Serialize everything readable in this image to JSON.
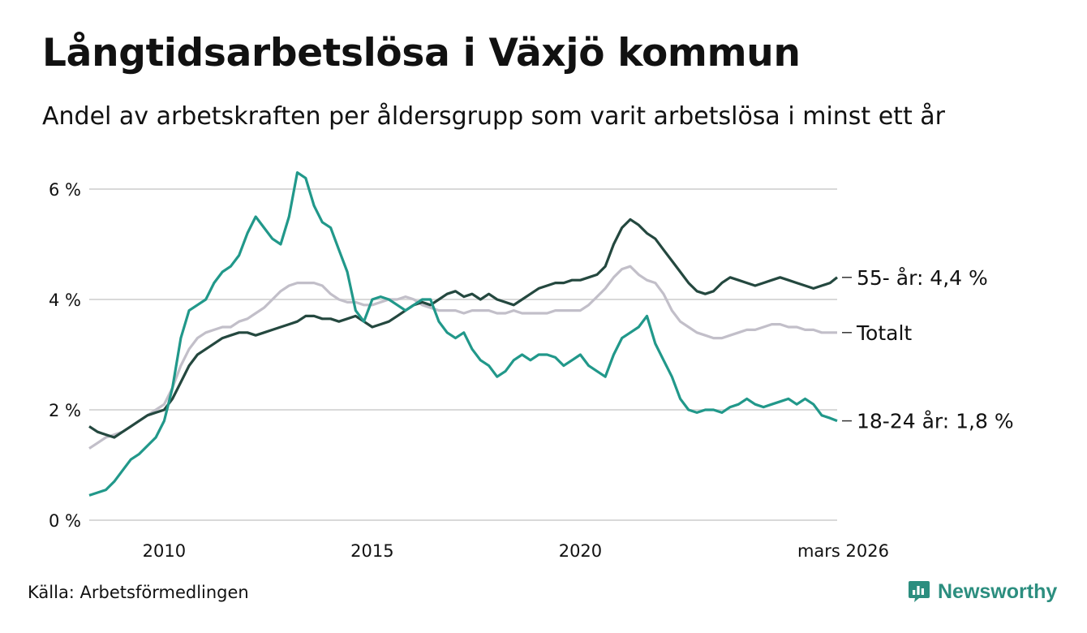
{
  "title": "Långtidsarbetslösa i Växjö kommun",
  "subtitle": "Andel av arbetskraften per åldersgrupp som varit arbetslösa i minst ett år",
  "source": "Källa: Arbetsförmedlingen",
  "brand": {
    "name": "Newsworthy",
    "icon": "newsworthy-logo-icon"
  },
  "colors": {
    "youth": "#21988a",
    "senior": "#24483f",
    "total": "#c2bfc9",
    "grid": "#d9d9d9",
    "brand": "#2c8e7f"
  },
  "chart_data": {
    "type": "line",
    "title": "Långtidsarbetslösa i Växjö kommun",
    "xlabel": "",
    "ylabel": "",
    "xlim": [
      2008.2,
      2026.17
    ],
    "ylim": [
      0,
      6
    ],
    "y_ticks": [
      0,
      2,
      4,
      6
    ],
    "y_tick_labels": [
      "0 %",
      "2 %",
      "4 %",
      "6 %"
    ],
    "x_ticks": [
      2010,
      2015,
      2020,
      2026.17
    ],
    "x_tick_labels": [
      "2010",
      "2015",
      "2020",
      "mars 2026"
    ],
    "grid": true,
    "series": [
      {
        "name": "55- år",
        "label": "55- år: 4,4 %",
        "color": "#24483f",
        "x": [
          2008.2,
          2008.4,
          2008.6,
          2008.8,
          2009.0,
          2009.2,
          2009.4,
          2009.6,
          2009.8,
          2010.0,
          2010.2,
          2010.4,
          2010.6,
          2010.8,
          2011.0,
          2011.2,
          2011.4,
          2011.6,
          2011.8,
          2012.0,
          2012.2,
          2012.4,
          2012.6,
          2012.8,
          2013.0,
          2013.2,
          2013.4,
          2013.6,
          2013.8,
          2014.0,
          2014.2,
          2014.4,
          2014.6,
          2014.8,
          2015.0,
          2015.2,
          2015.4,
          2015.6,
          2015.8,
          2016.0,
          2016.2,
          2016.4,
          2016.6,
          2016.8,
          2017.0,
          2017.2,
          2017.4,
          2017.6,
          2017.8,
          2018.0,
          2018.2,
          2018.4,
          2018.6,
          2018.8,
          2019.0,
          2019.2,
          2019.4,
          2019.6,
          2019.8,
          2020.0,
          2020.2,
          2020.4,
          2020.6,
          2020.8,
          2021.0,
          2021.2,
          2021.4,
          2021.6,
          2021.8,
          2022.0,
          2022.2,
          2022.4,
          2022.6,
          2022.8,
          2023.0,
          2023.2,
          2023.4,
          2023.6,
          2023.8,
          2024.0,
          2024.2,
          2024.4,
          2024.6,
          2024.8,
          2025.0,
          2025.2,
          2025.4,
          2025.6,
          2025.8,
          2026.0,
          2026.17
        ],
        "values": [
          1.7,
          1.6,
          1.55,
          1.5,
          1.6,
          1.7,
          1.8,
          1.9,
          1.95,
          2.0,
          2.2,
          2.5,
          2.8,
          3.0,
          3.1,
          3.2,
          3.3,
          3.35,
          3.4,
          3.4,
          3.35,
          3.4,
          3.45,
          3.5,
          3.55,
          3.6,
          3.7,
          3.7,
          3.65,
          3.65,
          3.6,
          3.65,
          3.7,
          3.6,
          3.5,
          3.55,
          3.6,
          3.7,
          3.8,
          3.9,
          3.95,
          3.9,
          4.0,
          4.1,
          4.15,
          4.05,
          4.1,
          4.0,
          4.1,
          4.0,
          3.95,
          3.9,
          4.0,
          4.1,
          4.2,
          4.25,
          4.3,
          4.3,
          4.35,
          4.35,
          4.4,
          4.45,
          4.6,
          5.0,
          5.3,
          5.45,
          5.35,
          5.2,
          5.1,
          4.9,
          4.7,
          4.5,
          4.3,
          4.15,
          4.1,
          4.15,
          4.3,
          4.4,
          4.35,
          4.3,
          4.25,
          4.3,
          4.35,
          4.4,
          4.35,
          4.3,
          4.25,
          4.2,
          4.25,
          4.3,
          4.4
        ]
      },
      {
        "name": "Totalt",
        "label": "Totalt",
        "color": "#c2bfc9",
        "x": [
          2008.2,
          2008.4,
          2008.6,
          2008.8,
          2009.0,
          2009.2,
          2009.4,
          2009.6,
          2009.8,
          2010.0,
          2010.2,
          2010.4,
          2010.6,
          2010.8,
          2011.0,
          2011.2,
          2011.4,
          2011.6,
          2011.8,
          2012.0,
          2012.2,
          2012.4,
          2012.6,
          2012.8,
          2013.0,
          2013.2,
          2013.4,
          2013.6,
          2013.8,
          2014.0,
          2014.2,
          2014.4,
          2014.6,
          2014.8,
          2015.0,
          2015.2,
          2015.4,
          2015.6,
          2015.8,
          2016.0,
          2016.2,
          2016.4,
          2016.6,
          2016.8,
          2017.0,
          2017.2,
          2017.4,
          2017.6,
          2017.8,
          2018.0,
          2018.2,
          2018.4,
          2018.6,
          2018.8,
          2019.0,
          2019.2,
          2019.4,
          2019.6,
          2019.8,
          2020.0,
          2020.2,
          2020.4,
          2020.6,
          2020.8,
          2021.0,
          2021.2,
          2021.4,
          2021.6,
          2021.8,
          2022.0,
          2022.2,
          2022.4,
          2022.6,
          2022.8,
          2023.0,
          2023.2,
          2023.4,
          2023.6,
          2023.8,
          2024.0,
          2024.2,
          2024.4,
          2024.6,
          2024.8,
          2025.0,
          2025.2,
          2025.4,
          2025.6,
          2025.8,
          2026.0,
          2026.17
        ],
        "values": [
          1.3,
          1.4,
          1.5,
          1.55,
          1.6,
          1.7,
          1.8,
          1.9,
          2.0,
          2.1,
          2.4,
          2.8,
          3.1,
          3.3,
          3.4,
          3.45,
          3.5,
          3.5,
          3.6,
          3.65,
          3.75,
          3.85,
          4.0,
          4.15,
          4.25,
          4.3,
          4.3,
          4.3,
          4.25,
          4.1,
          4.0,
          3.95,
          3.95,
          3.9,
          3.9,
          3.95,
          4.0,
          4.0,
          4.05,
          4.0,
          3.9,
          3.85,
          3.8,
          3.8,
          3.8,
          3.75,
          3.8,
          3.8,
          3.8,
          3.75,
          3.75,
          3.8,
          3.75,
          3.75,
          3.75,
          3.75,
          3.8,
          3.8,
          3.8,
          3.8,
          3.9,
          4.05,
          4.2,
          4.4,
          4.55,
          4.6,
          4.45,
          4.35,
          4.3,
          4.1,
          3.8,
          3.6,
          3.5,
          3.4,
          3.35,
          3.3,
          3.3,
          3.35,
          3.4,
          3.45,
          3.45,
          3.5,
          3.55,
          3.55,
          3.5,
          3.5,
          3.45,
          3.45,
          3.4,
          3.4,
          3.4
        ]
      },
      {
        "name": "18-24 år",
        "label": "18-24 år: 1,8 %",
        "color": "#21988a",
        "x": [
          2008.2,
          2008.4,
          2008.6,
          2008.8,
          2009.0,
          2009.2,
          2009.4,
          2009.6,
          2009.8,
          2010.0,
          2010.2,
          2010.4,
          2010.6,
          2010.8,
          2011.0,
          2011.2,
          2011.4,
          2011.6,
          2011.8,
          2012.0,
          2012.2,
          2012.4,
          2012.6,
          2012.8,
          2013.0,
          2013.2,
          2013.4,
          2013.6,
          2013.8,
          2014.0,
          2014.2,
          2014.4,
          2014.6,
          2014.8,
          2015.0,
          2015.2,
          2015.4,
          2015.6,
          2015.8,
          2016.0,
          2016.2,
          2016.4,
          2016.6,
          2016.8,
          2017.0,
          2017.2,
          2017.4,
          2017.6,
          2017.8,
          2018.0,
          2018.2,
          2018.4,
          2018.6,
          2018.8,
          2019.0,
          2019.2,
          2019.4,
          2019.6,
          2019.8,
          2020.0,
          2020.2,
          2020.4,
          2020.6,
          2020.8,
          2021.0,
          2021.2,
          2021.4,
          2021.6,
          2021.8,
          2022.0,
          2022.2,
          2022.4,
          2022.6,
          2022.8,
          2023.0,
          2023.2,
          2023.4,
          2023.6,
          2023.8,
          2024.0,
          2024.2,
          2024.4,
          2024.6,
          2024.8,
          2025.0,
          2025.2,
          2025.4,
          2025.6,
          2025.8,
          2026.0,
          2026.17
        ],
        "values": [
          0.45,
          0.5,
          0.55,
          0.7,
          0.9,
          1.1,
          1.2,
          1.35,
          1.5,
          1.8,
          2.4,
          3.3,
          3.8,
          3.9,
          4.0,
          4.3,
          4.5,
          4.6,
          4.8,
          5.2,
          5.5,
          5.3,
          5.1,
          5.0,
          5.5,
          6.3,
          6.2,
          5.7,
          5.4,
          5.3,
          4.9,
          4.5,
          3.8,
          3.6,
          4.0,
          4.05,
          4.0,
          3.9,
          3.8,
          3.9,
          4.0,
          4.0,
          3.6,
          3.4,
          3.3,
          3.4,
          3.1,
          2.9,
          2.8,
          2.6,
          2.7,
          2.9,
          3.0,
          2.9,
          3.0,
          3.0,
          2.95,
          2.8,
          2.9,
          3.0,
          2.8,
          2.7,
          2.6,
          3.0,
          3.3,
          3.4,
          3.5,
          3.7,
          3.2,
          2.9,
          2.6,
          2.2,
          2.0,
          1.95,
          2.0,
          2.0,
          1.95,
          2.05,
          2.1,
          2.2,
          2.1,
          2.05,
          2.1,
          2.15,
          2.2,
          2.1,
          2.2,
          2.1,
          1.9,
          1.85,
          1.8
        ]
      }
    ]
  }
}
